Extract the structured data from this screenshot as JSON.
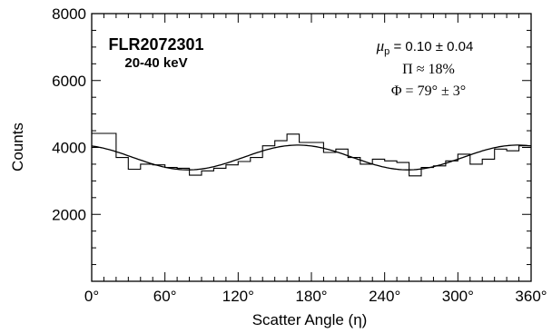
{
  "chart_data": {
    "type": "line",
    "title": "FLR2072301",
    "subtitle": "20-40 keV",
    "xlabel": "Scatter Angle (η)",
    "ylabel": "Counts",
    "xlim": [
      0,
      360
    ],
    "ylim": [
      0,
      8000
    ],
    "x_ticks": [
      0,
      60,
      120,
      180,
      240,
      300,
      360
    ],
    "x_tick_labels": [
      "0°",
      "60°",
      "120°",
      "180°",
      "240°",
      "300°",
      "360°"
    ],
    "x_minor_step": 10,
    "y_ticks": [
      2000,
      4000,
      6000,
      8000
    ],
    "y_tick_labels": [
      "2000",
      "4000",
      "6000",
      "8000"
    ],
    "y_minor_step": 500,
    "grid": false,
    "annotations": {
      "mu_symbol": "μ",
      "mu_subscript": "p",
      "mu_value": " = 0.10 ± 0.04",
      "pi_line": "Π ≈ 18%",
      "phi_line": "Φ = 79° ± 3°"
    },
    "series": [
      {
        "style": "histogram",
        "bin_width": 10,
        "bin_starts": [
          0,
          10,
          20,
          30,
          40,
          50,
          60,
          70,
          80,
          90,
          100,
          110,
          120,
          130,
          140,
          150,
          160,
          170,
          180,
          190,
          200,
          210,
          220,
          230,
          240,
          250,
          260,
          270,
          280,
          290,
          300,
          310,
          320,
          330,
          340,
          350
        ],
        "values": [
          4420,
          4420,
          3700,
          3350,
          3500,
          3480,
          3400,
          3380,
          3170,
          3300,
          3380,
          3480,
          3580,
          3700,
          4050,
          4200,
          4400,
          4150,
          4150,
          3850,
          3950,
          3700,
          3500,
          3650,
          3600,
          3550,
          3150,
          3400,
          3450,
          3600,
          3800,
          3500,
          3650,
          3950,
          3900,
          4050
        ]
      },
      {
        "style": "model",
        "mean": 3700,
        "amplitude": 370,
        "phase_deg": 169
      }
    ]
  }
}
